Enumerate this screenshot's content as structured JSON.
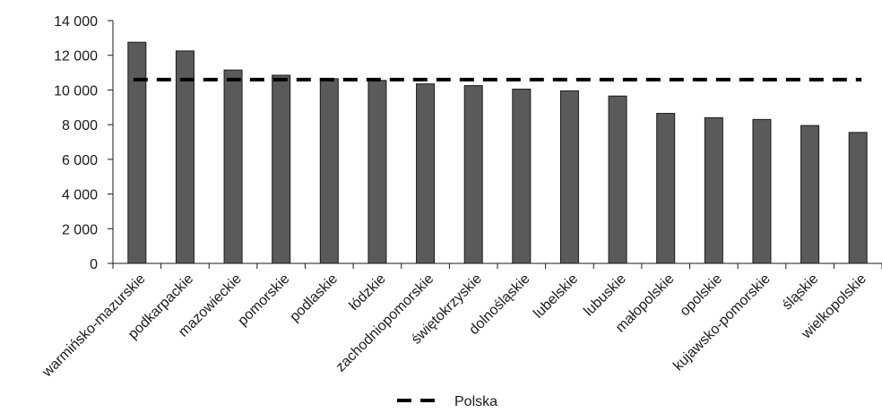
{
  "chart_data": {
    "type": "bar",
    "categories": [
      "warmińsko-mazurskie",
      "podkarpackie",
      "mazowieckie",
      "pomorskie",
      "podlaskie",
      "łódzkie",
      "zachodniopomorskie",
      "świętokrzyskie",
      "dolnośląskie",
      "lubelskie",
      "lubuskie",
      "małopolskie",
      "opolskie",
      "kujawsko-pomorskie",
      "śląskie",
      "wielkopolskie"
    ],
    "values": [
      12750,
      12250,
      11150,
      10850,
      10650,
      10550,
      10350,
      10250,
      10050,
      9950,
      9650,
      8650,
      8400,
      8300,
      7950,
      7550
    ],
    "y_tick_labels": [
      "0",
      "2 000",
      "4 000",
      "6 000",
      "8 000",
      "10 000",
      "12 000",
      "14 000"
    ],
    "y_tick_values": [
      0,
      2000,
      4000,
      6000,
      8000,
      10000,
      12000,
      14000
    ],
    "ylim": [
      0,
      14000
    ],
    "reference_line": {
      "name": "Polska",
      "value": 10600,
      "style": "dashed"
    },
    "legend": {
      "position": "bottom",
      "label": "Polska"
    },
    "grid": false,
    "colors": {
      "bar_fill": "#5a5a5a",
      "bar_stroke": "#1a1a1a",
      "axis": "#1a1a1a",
      "reference": "#000000"
    }
  }
}
